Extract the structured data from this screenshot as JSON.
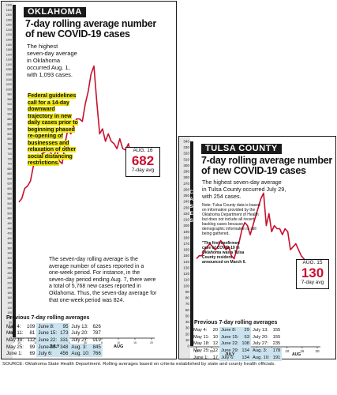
{
  "colors": {
    "line": "#c8102e",
    "highlight": "#f0e90c",
    "table_blue": "#cbe3ee",
    "dark": "#1a1a1a"
  },
  "oklahoma": {
    "header": "OKLAHOMA",
    "title_line1": "7-day rolling average number",
    "title_line2": "of new COVID-19 cases",
    "highest_note": [
      "The highest",
      "seven-day average",
      "in Oklahoma",
      "occurred Aug. 1,",
      "with 1,093 cases."
    ],
    "federal_note": [
      "Federal guidelines",
      "call for a 14-day",
      "downward",
      "trajectory in new",
      "daily cases prior to",
      "beginning phased",
      "re-opening of",
      "businesses and",
      "relaxation of other",
      "social distancing",
      "restrictions."
    ],
    "callout": {
      "date": "AUG. 16",
      "value": "682",
      "label": "7-day avg"
    },
    "rolling_note": [
      "The seven-day rolling average is the",
      "average number of cases reported in a",
      "one-week period. For instance, in the",
      "seven-day period ending Aug. 7, there were",
      "a total of 5,768 new cases reported in",
      "Oklahoma. Thus, the seven-day average for",
      "that one-week period was 824."
    ],
    "cases_label": [
      "C",
      "A",
      "S",
      "E",
      "S"
    ],
    "prev_title": "Previous 7-day rolling averages",
    "prev": [
      [
        "May 4:",
        "109",
        "June 8:",
        "95",
        "July 13:",
        "626"
      ],
      [
        "May 11:",
        "81",
        "June 15:",
        "173",
        "July 20:",
        "787"
      ],
      [
        "May 18:",
        "112",
        "June 22:",
        "331",
        "July 27:",
        "919"
      ],
      [
        "May 25:",
        "99",
        "June 29:",
        "348",
        "Aug. 3:",
        "845"
      ],
      [
        "June 1:",
        "69",
        "July 6:",
        "456",
        "Aug. 10:",
        "766"
      ]
    ],
    "month_labels": [
      "JULY",
      "AUG"
    ]
  },
  "tulsa": {
    "header": "TULSA COUNTY",
    "title_line1": "7-day rolling average number",
    "title_line2": "of new COVID-19 cases",
    "highest_note": [
      "The highest seven-day average",
      "in Tulsa County occurred July 29,",
      "with 254 cases."
    ],
    "small_note": [
      "Note: Tulsa County data is based",
      "on information provided by the",
      "Oklahoma Department of Health",
      "but does not include all recent",
      "backlog cases because",
      "demographic information is still",
      "being gathered."
    ],
    "first_case_note": [
      "\"The first confirmed",
      "case of COVID-19 in",
      "Oklahoma was a Tulsa",
      "County resident",
      "announced on March 6."
    ],
    "callout": {
      "date": "AUG. 15",
      "value": "130",
      "label": "7-day avg"
    },
    "cases_label": [
      "C",
      "A",
      "S",
      "E",
      "S"
    ],
    "prev_title": "Previous 7-day rolling averages",
    "prev": [
      [
        "May 4:",
        "20",
        "June 8:",
        "29",
        "July 13:",
        "155"
      ],
      [
        "May 11:",
        "10",
        "June 15:",
        "53",
        "July 20:",
        "155"
      ],
      [
        "May 18:",
        "12",
        "June 22:",
        "108",
        "July 27:",
        "235"
      ],
      [
        "May 25:",
        "12",
        "June 29:",
        "134",
        "Aug. 3:",
        "178"
      ],
      [
        "June 1:",
        "17",
        "July 6:",
        "134",
        "Aug. 10:",
        "191"
      ]
    ],
    "month_labels": [
      "JULY",
      "AUG"
    ]
  },
  "source": "SOURCE: Oklahoma State Health Department. Rolling averages based on criteria established by state and county health officials.",
  "chart_data": [
    {
      "type": "line",
      "title": "7-day rolling average number of new COVID-19 cases",
      "ylabel": "CASES",
      "ylim": [
        0,
        1340
      ],
      "yticks": [
        0,
        20,
        40,
        60,
        80,
        100,
        120,
        140,
        160,
        180,
        200,
        220,
        240,
        260,
        280,
        300,
        320,
        340,
        360,
        380,
        400,
        420,
        440,
        460,
        480,
        500,
        520,
        540,
        560,
        580,
        600,
        620,
        640,
        660,
        680,
        700,
        720,
        740,
        760,
        780,
        800,
        820,
        840,
        860,
        880,
        900,
        920,
        940,
        960,
        980,
        1000,
        1020,
        1040,
        1060,
        1080,
        1100,
        1120,
        1140,
        1160,
        1180,
        1200,
        1220,
        1240,
        1260,
        1280,
        1300,
        1320,
        1340
      ],
      "xticks": [
        "10",
        "15",
        "20",
        "25",
        "30",
        "5",
        "10",
        "15",
        "20"
      ],
      "x": [
        1,
        2,
        3,
        4,
        5,
        6,
        7,
        8,
        9,
        10,
        11,
        12,
        13,
        14,
        15,
        16,
        17,
        18,
        19,
        20,
        21,
        22,
        23,
        24,
        25,
        26,
        27,
        28,
        29,
        30,
        31,
        32,
        33,
        34,
        35,
        36,
        37,
        38,
        39,
        40,
        41,
        42,
        43,
        44,
        45,
        46,
        47
      ],
      "values": [
        545,
        560,
        600,
        610,
        630,
        690,
        700,
        700,
        740,
        745,
        755,
        745,
        720,
        760,
        710,
        700,
        780,
        840,
        820,
        855,
        880,
        880,
        870,
        940,
        990,
        1060,
        1093,
        950,
        820,
        840,
        790,
        820,
        790,
        780,
        760,
        800,
        760,
        755,
        780,
        720,
        700,
        680,
        682,
        672,
        676,
        682,
        680
      ]
    },
    {
      "type": "line",
      "title": "7-day rolling average number of new COVID-19 cases",
      "ylabel": "CASES",
      "ylim": [
        0,
        340
      ],
      "yticks": [
        0,
        10,
        20,
        30,
        40,
        50,
        60,
        70,
        80,
        90,
        100,
        110,
        120,
        130,
        140,
        150,
        160,
        170,
        180,
        190,
        200,
        210,
        220,
        230,
        240,
        250,
        260,
        270,
        280,
        290,
        300,
        310,
        320,
        330,
        340
      ],
      "xticks": [
        "10",
        "15",
        "20",
        "25",
        "30",
        "5",
        "10",
        "15",
        "20"
      ],
      "x": [
        1,
        2,
        3,
        4,
        5,
        6,
        7,
        8,
        9,
        10,
        11,
        12,
        13,
        14,
        15,
        16,
        17,
        18,
        19,
        20,
        21,
        22,
        23,
        24,
        25,
        26,
        27,
        28,
        29,
        30,
        31,
        32,
        33,
        34,
        35,
        36,
        37,
        38,
        39,
        40,
        41,
        42,
        43,
        44,
        45,
        46
      ],
      "values": [
        145,
        150,
        150,
        160,
        165,
        170,
        165,
        160,
        165,
        175,
        170,
        160,
        165,
        150,
        145,
        160,
        175,
        195,
        205,
        200,
        185,
        200,
        215,
        230,
        245,
        254,
        200,
        220,
        190,
        200,
        195,
        195,
        185,
        195,
        190,
        160,
        165,
        170,
        160,
        150,
        145,
        140,
        135,
        130,
        130,
        130
      ]
    }
  ]
}
